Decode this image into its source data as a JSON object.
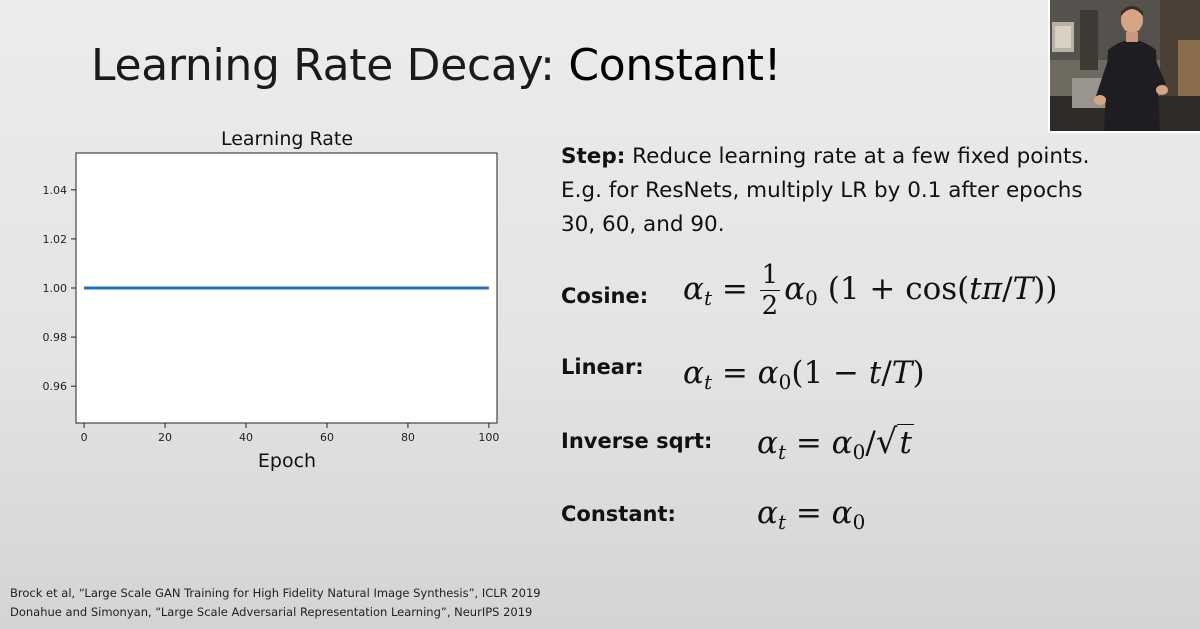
{
  "slide": {
    "title_main": "Learning Rate Decay",
    "title_colon": ": ",
    "title_highlight": "Constant!"
  },
  "step": {
    "label": "Step:",
    "line1": " Reduce learning rate at a few fixed points.",
    "line2": "E.g. for ResNets, multiply LR by 0.1 after epochs",
    "line3": "30, 60, and 90."
  },
  "formulas": {
    "cosine_label": "Cosine:",
    "linear_label": "Linear:",
    "inverse_sqrt_label": "Inverse sqrt:",
    "constant_label": "Constant:"
  },
  "references": [
    "Brock et al, “Large Scale GAN Training for High Fidelity Natural Image Synthesis”, ICLR 2019",
    "Donahue and Simonyan, “Large Scale Adversarial Representation Learning”, NeurIPS 2019"
  ],
  "chart_data": {
    "type": "line",
    "title": "Learning Rate",
    "xlabel": "Epoch",
    "ylabel": "",
    "xlim": [
      -2,
      102
    ],
    "ylim": [
      0.945,
      1.055
    ],
    "x_ticks": [
      0,
      20,
      40,
      60,
      80,
      100
    ],
    "y_ticks": [
      0.96,
      0.98,
      1.0,
      1.02,
      1.04
    ],
    "y_tick_labels": [
      "0.96",
      "0.98",
      "1.00",
      "1.02",
      "1.04"
    ],
    "grid": false,
    "series": [
      {
        "x": [
          0,
          100
        ],
        "y": [
          1.0,
          1.0
        ],
        "color": "#1f6fb4"
      }
    ]
  }
}
